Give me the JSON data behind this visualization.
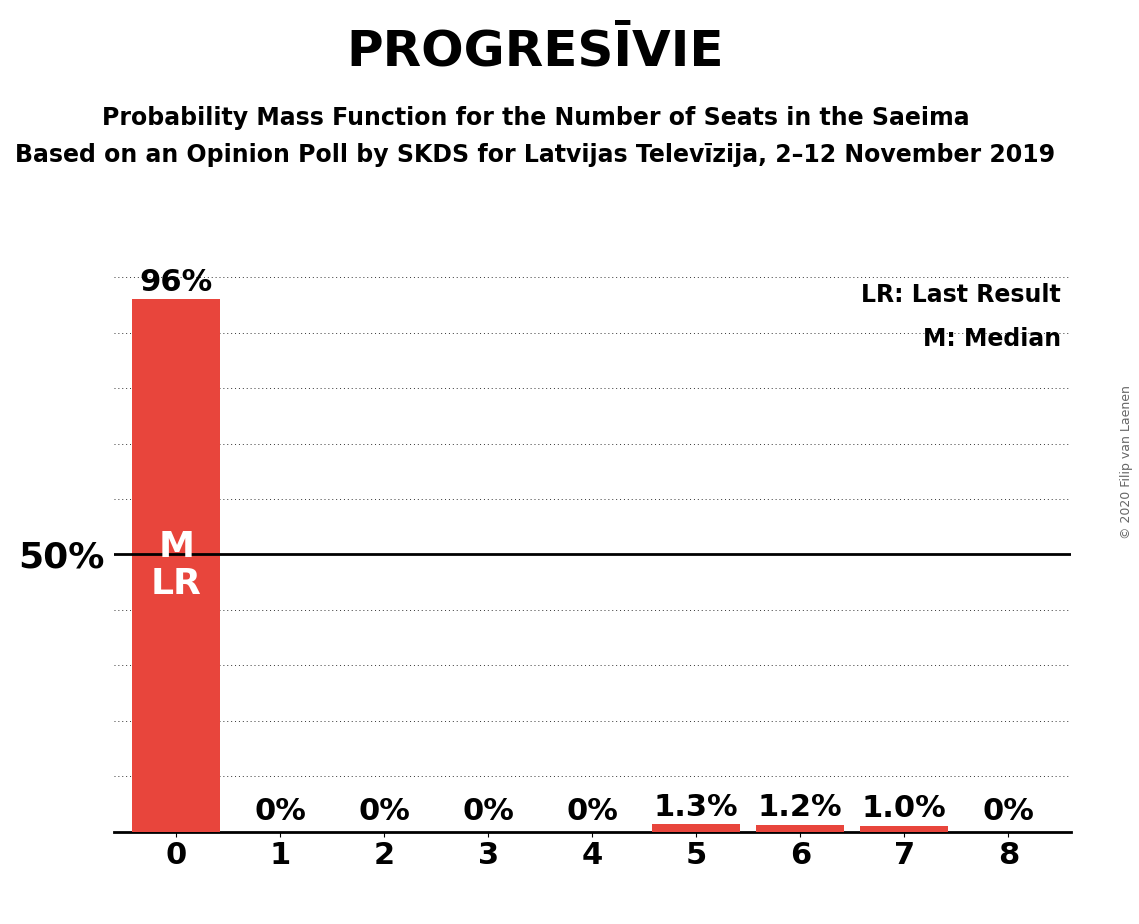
{
  "title": "PROGRESĪVIE",
  "subtitle1": "Probability Mass Function for the Number of Seats in the Saeima",
  "subtitle2": "Based on an Opinion Poll by SKDS for Latvijas Televīzija, 2–12 November 2019",
  "copyright": "© 2020 Filip van Laenen",
  "categories": [
    0,
    1,
    2,
    3,
    4,
    5,
    6,
    7,
    8
  ],
  "values": [
    96.0,
    0.0,
    0.0,
    0.0,
    0.0,
    1.3,
    1.2,
    1.0,
    0.0
  ],
  "bar_color": "#e8453c",
  "background_color": "#ffffff",
  "ylabel_50": "50%",
  "legend_lr": "LR: Last Result",
  "legend_m": "M: Median",
  "bar_label_color_black": "#000000",
  "bar_label_color_white": "#ffffff",
  "axis_label_fontsize": 22,
  "bar_label_fontsize": 22,
  "title_fontsize": 36,
  "subtitle_fontsize": 17,
  "legend_fontsize": 17,
  "fifty_label_fontsize": 26,
  "ml_fontsize": 26,
  "copyright_fontsize": 9
}
